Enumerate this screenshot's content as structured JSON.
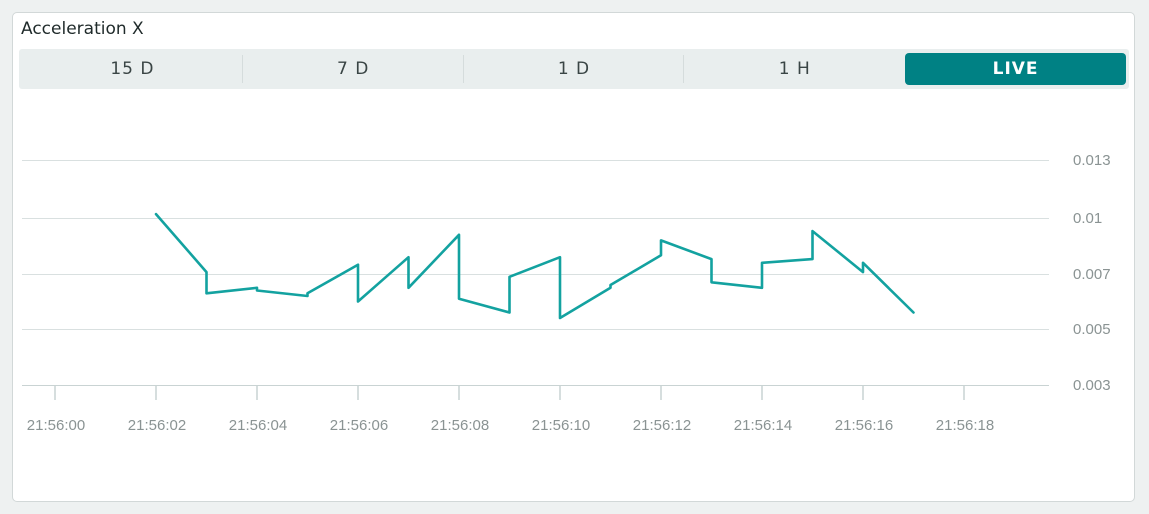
{
  "widget": {
    "title": "Acceleration X",
    "tabs": [
      {
        "label": "15 D",
        "active": false
      },
      {
        "label": "7 D",
        "active": false
      },
      {
        "label": "1 D",
        "active": false
      },
      {
        "label": "1 H",
        "active": false
      },
      {
        "label": "LIVE",
        "active": true
      }
    ]
  },
  "colors": {
    "accent": "#008184",
    "line": "#13a2a0",
    "grid": "#d9e0e0",
    "tick_text": "#8a9393"
  },
  "chart_data": {
    "type": "line",
    "title": "",
    "xlabel": "",
    "ylabel": "",
    "x_ticks": [
      "21:56:00",
      "21:56:02",
      "21:56:04",
      "21:56:06",
      "21:56:08",
      "21:56:10",
      "21:56:12",
      "21:56:14",
      "21:56:16",
      "21:56:18"
    ],
    "y_ticks": [
      "0.003",
      "0.005",
      "0.007",
      "0.01",
      "0.013"
    ],
    "xlim": [
      0,
      18
    ],
    "ylim": [
      0.003,
      0.013
    ],
    "grid": true,
    "series": [
      {
        "x": [
          2.0,
          3.0,
          3.0,
          4.0,
          4.0,
          5.0,
          5.0,
          6.0,
          6.0,
          7.0,
          7.0,
          8.0,
          8.0,
          9.0,
          9.0,
          10.0,
          10.0,
          11.0,
          11.0,
          12.0,
          12.0,
          13.0,
          13.0,
          14.0,
          14.0,
          15.0,
          15.0,
          16.0,
          16.0,
          17.0
        ],
        "y": [
          0.0102,
          0.0071,
          0.0063,
          0.0065,
          0.0064,
          0.0062,
          0.0063,
          0.0075,
          0.006,
          0.0079,
          0.0065,
          0.0091,
          0.0061,
          0.0056,
          0.0069,
          0.0079,
          0.0054,
          0.0065,
          0.0066,
          0.008,
          0.0088,
          0.0078,
          0.0067,
          0.0065,
          0.0076,
          0.0078,
          0.0093,
          0.0071,
          0.0076,
          0.0056
        ]
      }
    ]
  }
}
